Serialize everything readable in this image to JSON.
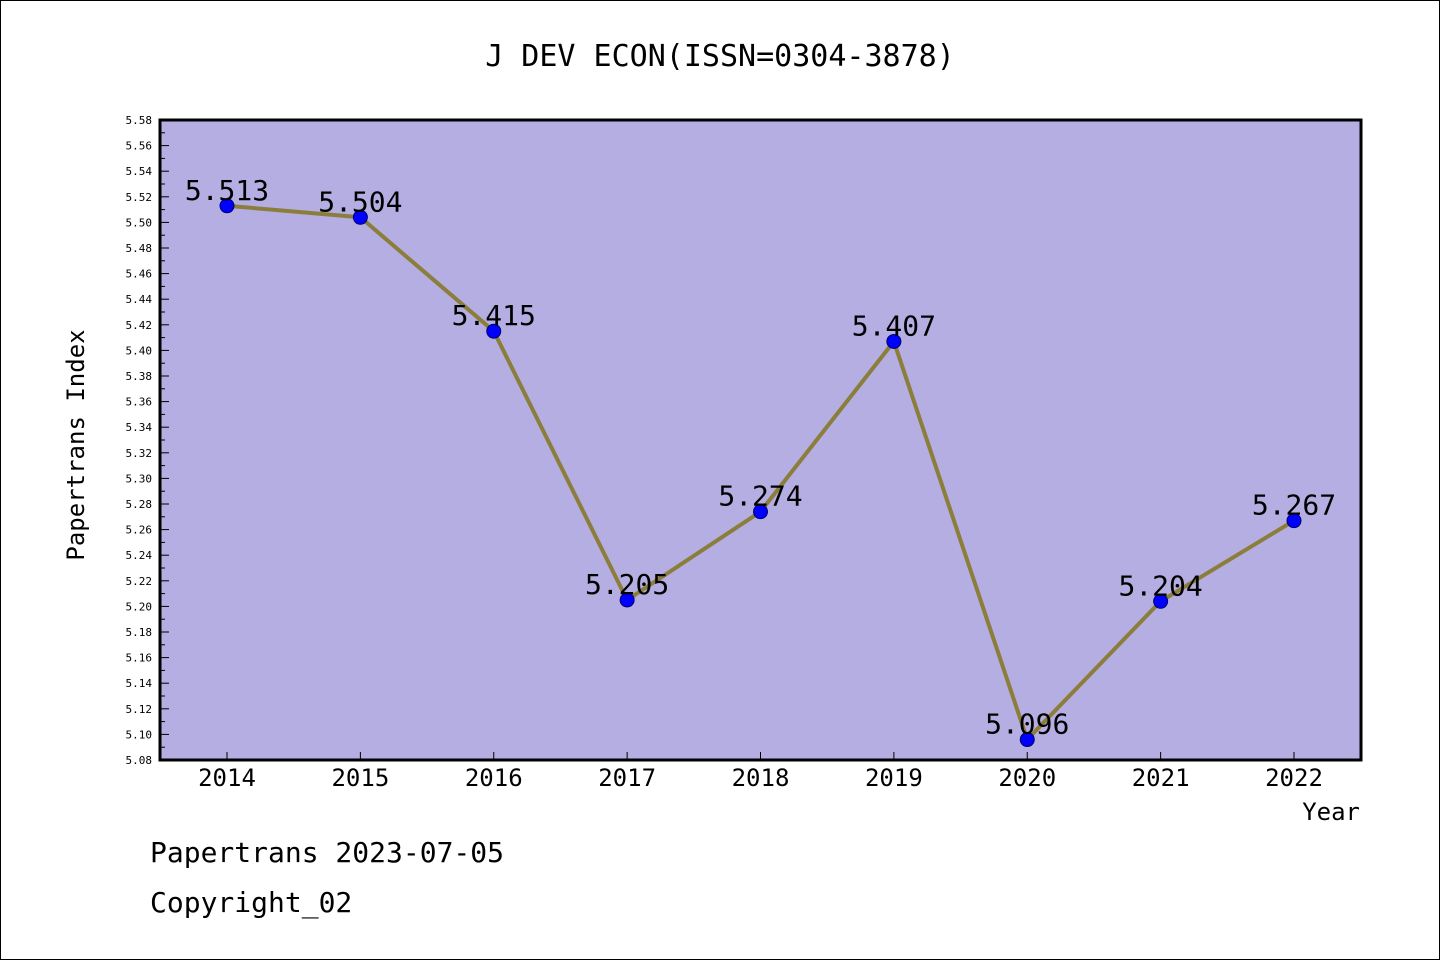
{
  "chart_data": {
    "type": "line",
    "title": "J DEV ECON(ISSN=0304-3878)",
    "xlabel": "Year",
    "ylabel": "Papertrans Index",
    "categories": [
      "2014",
      "2015",
      "2016",
      "2017",
      "2018",
      "2019",
      "2020",
      "2021",
      "2022"
    ],
    "series": [
      {
        "values": [
          5.513,
          5.504,
          5.415,
          5.205,
          5.274,
          5.407,
          5.096,
          5.204,
          5.267
        ],
        "data_labels": [
          "5.513",
          "5.504",
          "5.415",
          "5.205",
          "5.274",
          "5.407",
          "5.096",
          "5.204",
          "5.267"
        ]
      }
    ],
    "ylim": [
      5.08,
      5.58
    ],
    "ytick_step": 0.02,
    "y_tick_labels": [
      "5.08",
      "5.10",
      "5.12",
      "5.14",
      "5.16",
      "5.18",
      "5.20",
      "5.22",
      "5.24",
      "5.26",
      "5.28",
      "5.30",
      "5.32",
      "5.34",
      "5.36",
      "5.38",
      "5.40",
      "5.42",
      "5.44",
      "5.46",
      "5.48",
      "5.50",
      "5.52",
      "5.54",
      "5.56",
      "5.58"
    ],
    "grid": false,
    "colors": {
      "plot_background": "#b4aee2",
      "line": "#8b7d3a",
      "marker": "#0000ff"
    }
  },
  "footer": {
    "date_text": "Papertrans 2023-07-05",
    "copyright_text": "Copyright_02"
  }
}
